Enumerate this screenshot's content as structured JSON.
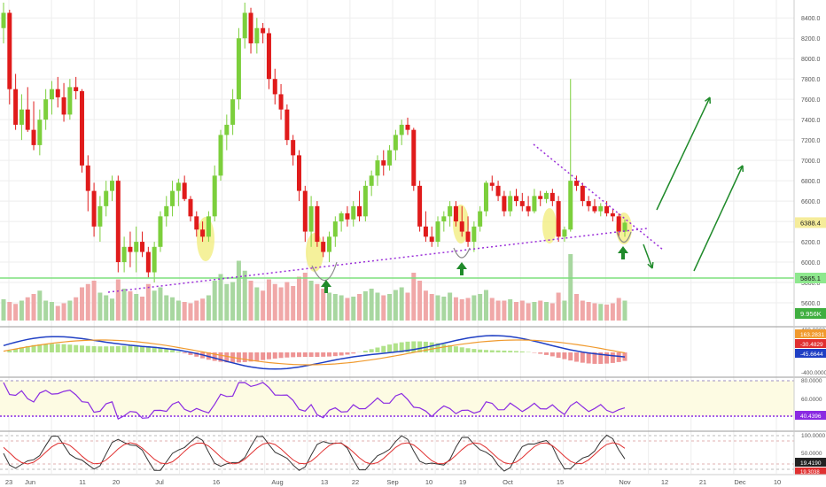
{
  "chart_data": {
    "type": "candlestick",
    "title": "",
    "colors": {
      "up": "#7ccf3c",
      "down": "#e01b1b",
      "volume_up": "#a8d7a0",
      "volume_down": "#f0a8a8",
      "trendline": "#9b30d9",
      "arrow": "#1f8a2a",
      "highlight": "#f2ec7a",
      "support_line": "#7fe07f",
      "macd_line": "#1f3fc4",
      "signal_line": "#f09a2e",
      "rsi_line": "#8a2be2",
      "stoch_k": "#333333",
      "stoch_d": "#e03030",
      "grid": "#eeeeee"
    },
    "x_tick_labels": [
      "23",
      "Jun",
      "11",
      "20",
      "Jul",
      "16",
      "Aug",
      "13",
      "22",
      "Sep",
      "10",
      "19",
      "Oct",
      "15",
      "Nov",
      "12",
      "21",
      "Dec",
      "10"
    ],
    "price_axis": {
      "ticks": [
        "8400.0",
        "8200.0",
        "8000.0",
        "7800.0",
        "7600.0",
        "7400.0",
        "7200.0",
        "7000.0",
        "6800.0",
        "6600.0",
        "6400.0",
        "6200.0",
        "6000.0",
        "5800.0",
        "5600.0"
      ],
      "ylim": [
        5400,
        8550
      ]
    },
    "price_labels": {
      "last_price": "6388.4",
      "support_level": "5865.1",
      "volume": "9.956K"
    },
    "candles": [
      [
        8300,
        8550,
        8150,
        8450
      ],
      [
        8450,
        8480,
        7550,
        7700
      ],
      [
        7700,
        7850,
        7300,
        7350
      ],
      [
        7350,
        7650,
        7200,
        7500
      ],
      [
        7500,
        7720,
        7280,
        7300
      ],
      [
        7300,
        7580,
        7100,
        7150
      ],
      [
        7150,
        7500,
        7050,
        7400
      ],
      [
        7400,
        7700,
        7300,
        7600
      ],
      [
        7600,
        7780,
        7450,
        7700
      ],
      [
        7700,
        7820,
        7520,
        7620
      ],
      [
        7620,
        7760,
        7380,
        7450
      ],
      [
        7450,
        7800,
        7400,
        7720
      ],
      [
        7720,
        7820,
        7600,
        7680
      ],
      [
        7680,
        7700,
        6880,
        6950
      ],
      [
        6950,
        7050,
        6500,
        6700
      ],
      [
        6700,
        6780,
        6250,
        6350
      ],
      [
        6350,
        6650,
        6200,
        6550
      ],
      [
        6550,
        6800,
        6450,
        6700
      ],
      [
        6700,
        6850,
        6600,
        6800
      ],
      [
        6800,
        6850,
        5900,
        6000
      ],
      [
        6000,
        6250,
        5900,
        6150
      ],
      [
        6150,
        6300,
        5950,
        6100
      ],
      [
        6100,
        6350,
        5900,
        6200
      ],
      [
        6200,
        6300,
        6050,
        6100
      ],
      [
        6100,
        6150,
        5850,
        5900
      ],
      [
        5900,
        6200,
        5800,
        6150
      ],
      [
        6150,
        6500,
        6100,
        6450
      ],
      [
        6450,
        6650,
        6350,
        6550
      ],
      [
        6550,
        6800,
        6450,
        6700
      ],
      [
        6700,
        6820,
        6550,
        6780
      ],
      [
        6780,
        6850,
        6600,
        6620
      ],
      [
        6620,
        6650,
        6400,
        6450
      ],
      [
        6450,
        6500,
        6250,
        6320
      ],
      [
        6320,
        6400,
        6200,
        6250
      ],
      [
        6250,
        6500,
        6200,
        6450
      ],
      [
        6450,
        6950,
        6400,
        6850
      ],
      [
        6850,
        7300,
        6800,
        7250
      ],
      [
        7250,
        7450,
        7100,
        7350
      ],
      [
        7350,
        7700,
        7250,
        7600
      ],
      [
        7600,
        8300,
        7500,
        8200
      ],
      [
        8200,
        8550,
        8100,
        8450
      ],
      [
        8450,
        8500,
        8050,
        8150
      ],
      [
        8150,
        8400,
        8050,
        8300
      ],
      [
        8300,
        8350,
        8150,
        8250
      ],
      [
        8250,
        8300,
        7700,
        7800
      ],
      [
        7800,
        7900,
        7550,
        7650
      ],
      [
        7650,
        7750,
        7400,
        7500
      ],
      [
        7500,
        7550,
        7150,
        7200
      ],
      [
        7200,
        7250,
        6950,
        7050
      ],
      [
        7050,
        7100,
        6600,
        6700
      ],
      [
        6700,
        6750,
        6200,
        6300
      ],
      [
        6300,
        6650,
        6150,
        6550
      ],
      [
        6550,
        6600,
        6150,
        6200
      ],
      [
        6200,
        6250,
        6050,
        6100
      ],
      [
        6100,
        6300,
        6000,
        6250
      ],
      [
        6250,
        6450,
        6150,
        6400
      ],
      [
        6400,
        6500,
        6300,
        6480
      ],
      [
        6480,
        6550,
        6350,
        6420
      ],
      [
        6420,
        6600,
        6350,
        6550
      ],
      [
        6550,
        6700,
        6400,
        6450
      ],
      [
        6450,
        6800,
        6400,
        6750
      ],
      [
        6750,
        6900,
        6650,
        6850
      ],
      [
        6850,
        7050,
        6750,
        7000
      ],
      [
        7000,
        7100,
        6850,
        6950
      ],
      [
        6950,
        7150,
        6900,
        7100
      ],
      [
        7100,
        7300,
        7000,
        7250
      ],
      [
        7250,
        7400,
        7150,
        7350
      ],
      [
        7350,
        7420,
        7250,
        7300
      ],
      [
        7300,
        7320,
        6700,
        6750
      ],
      [
        6750,
        6800,
        6300,
        6350
      ],
      [
        6350,
        6500,
        6200,
        6250
      ],
      [
        6250,
        6350,
        6150,
        6200
      ],
      [
        6200,
        6450,
        6150,
        6400
      ],
      [
        6400,
        6500,
        6300,
        6450
      ],
      [
        6450,
        6600,
        6350,
        6550
      ],
      [
        6550,
        6600,
        6350,
        6400
      ],
      [
        6400,
        6550,
        6250,
        6300
      ],
      [
        6300,
        6450,
        6150,
        6200
      ],
      [
        6200,
        6400,
        6100,
        6350
      ],
      [
        6350,
        6550,
        6300,
        6500
      ],
      [
        6500,
        6800,
        6450,
        6780
      ],
      [
        6780,
        6850,
        6700,
        6750
      ],
      [
        6750,
        6800,
        6600,
        6650
      ],
      [
        6650,
        6700,
        6450,
        6500
      ],
      [
        6500,
        6700,
        6450,
        6650
      ],
      [
        6650,
        6720,
        6550,
        6600
      ],
      [
        6600,
        6680,
        6500,
        6550
      ],
      [
        6550,
        6650,
        6450,
        6500
      ],
      [
        6500,
        6720,
        6480,
        6650
      ],
      [
        6650,
        6700,
        6550,
        6620
      ],
      [
        6620,
        6700,
        6580,
        6680
      ],
      [
        6680,
        6720,
        6550,
        6600
      ],
      [
        6600,
        6650,
        6200,
        6250
      ],
      [
        6250,
        6350,
        6200,
        6320
      ],
      [
        6320,
        7800,
        6300,
        6800
      ],
      [
        6800,
        6850,
        6700,
        6750
      ],
      [
        6750,
        6780,
        6550,
        6600
      ],
      [
        6600,
        6650,
        6500,
        6550
      ],
      [
        6550,
        6620,
        6480,
        6500
      ],
      [
        6500,
        6580,
        6450,
        6550
      ],
      [
        6550,
        6600,
        6450,
        6480
      ],
      [
        6480,
        6520,
        6400,
        6450
      ],
      [
        6450,
        6480,
        6250,
        6300
      ],
      [
        6300,
        6420,
        6250,
        6388
      ]
    ],
    "volume": [
      0.32,
      0.28,
      0.25,
      0.3,
      0.35,
      0.4,
      0.45,
      0.3,
      0.28,
      0.22,
      0.26,
      0.3,
      0.35,
      0.5,
      0.55,
      0.6,
      0.42,
      0.38,
      0.33,
      0.62,
      0.48,
      0.44,
      0.4,
      0.36,
      0.55,
      0.45,
      0.5,
      0.38,
      0.35,
      0.3,
      0.28,
      0.26,
      0.3,
      0.33,
      0.38,
      0.6,
      0.7,
      0.55,
      0.58,
      0.9,
      0.75,
      0.6,
      0.5,
      0.45,
      0.62,
      0.55,
      0.5,
      0.58,
      0.52,
      0.66,
      0.72,
      0.6,
      0.55,
      0.48,
      0.42,
      0.4,
      0.38,
      0.34,
      0.36,
      0.4,
      0.44,
      0.48,
      0.42,
      0.38,
      0.4,
      0.46,
      0.5,
      0.42,
      0.72,
      0.6,
      0.45,
      0.4,
      0.38,
      0.36,
      0.42,
      0.35,
      0.32,
      0.34,
      0.38,
      0.4,
      0.46,
      0.34,
      0.3,
      0.3,
      0.32,
      0.28,
      0.3,
      0.26,
      0.28,
      0.3,
      0.28,
      0.26,
      0.42,
      0.3,
      1.0,
      0.4,
      0.3,
      0.28,
      0.26,
      0.25,
      0.24,
      0.26,
      0.34,
      0.3
    ],
    "volume_scale_labels": [
      "5865.1",
      "9.956K"
    ],
    "macd": {
      "axis_ticks": [
        "400.0000",
        "-400.0000"
      ],
      "value_labels": [
        "163.2831",
        "-30.4829",
        "-45.6644"
      ]
    },
    "rsi": {
      "axis_ticks": [
        "80.0000",
        "60.0000",
        "40.0000"
      ],
      "value_label": "40.4396"
    },
    "stochastic": {
      "axis_ticks": [
        "100.0000",
        "50.0000"
      ],
      "value_labels": [
        "19.4190",
        "19.3038"
      ]
    }
  }
}
